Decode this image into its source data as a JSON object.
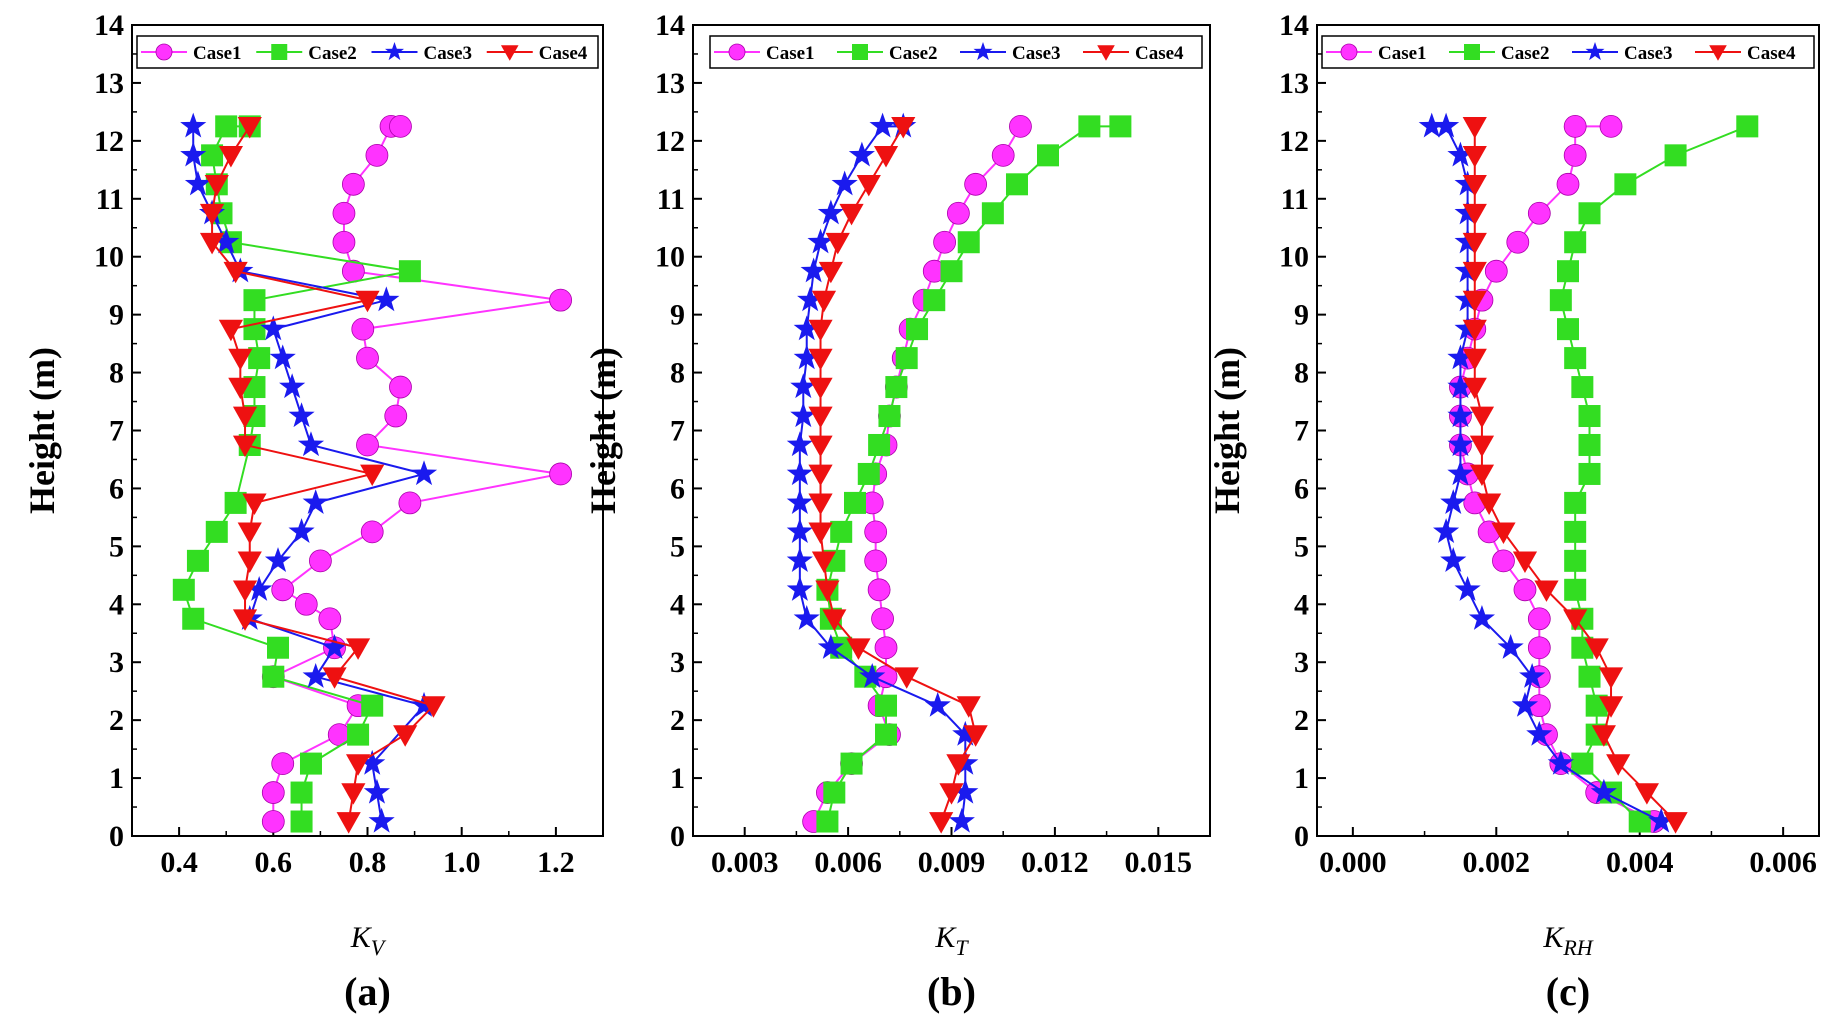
{
  "chart_data": [
    {
      "type": "line",
      "panel_label": "(a)",
      "xlabel_main": "K",
      "xlabel_sub": "V",
      "ylabel": "Height (m)",
      "xlim": [
        0.3,
        1.3
      ],
      "ylim": [
        0,
        14
      ],
      "xticks": [
        "0.4",
        "0.6",
        "0.8",
        "1.0",
        "1.2"
      ],
      "xtick_values": [
        0.4,
        0.6,
        0.8,
        1.0,
        1.2
      ],
      "yticks": [
        "0",
        "1",
        "2",
        "3",
        "4",
        "5",
        "6",
        "7",
        "8",
        "9",
        "10",
        "11",
        "12",
        "13",
        "14"
      ],
      "legend_position": "top",
      "series": [
        {
          "name": "Case1",
          "color": "#ff33ff",
          "marker": "circle",
          "x": [
            0.6,
            0.6,
            0.62,
            0.74,
            0.78,
            0.6,
            0.73,
            0.72,
            0.67,
            0.62,
            0.7,
            0.81,
            0.89,
            1.21,
            0.8,
            0.86,
            0.87,
            0.8,
            0.79,
            1.21,
            0.77,
            0.75,
            0.75,
            0.77,
            0.82,
            0.85,
            0.87
          ],
          "y": [
            0.25,
            0.75,
            1.25,
            1.75,
            2.25,
            2.75,
            3.25,
            3.75,
            4.0,
            4.25,
            4.75,
            5.25,
            5.75,
            6.25,
            6.75,
            7.25,
            7.75,
            8.25,
            8.75,
            9.25,
            9.75,
            10.25,
            10.75,
            11.25,
            11.75,
            12.25,
            12.25
          ]
        },
        {
          "name": "Case2",
          "color": "#33dd22",
          "marker": "square",
          "x": [
            0.66,
            0.66,
            0.68,
            0.78,
            0.81,
            0.6,
            0.61,
            0.43,
            0.41,
            0.44,
            0.48,
            0.52,
            0.55,
            0.56,
            0.56,
            0.57,
            0.56,
            0.56,
            0.89,
            0.51,
            0.49,
            0.48,
            0.47,
            0.5,
            0.55
          ],
          "y": [
            0.25,
            0.75,
            1.25,
            1.75,
            2.25,
            2.75,
            3.25,
            3.75,
            4.25,
            4.75,
            5.25,
            5.75,
            6.75,
            7.25,
            7.75,
            8.25,
            8.75,
            9.25,
            9.75,
            10.25,
            10.75,
            11.25,
            11.75,
            12.25,
            12.25
          ]
        },
        {
          "name": "Case3",
          "color": "#1a1aee",
          "marker": "star",
          "x": [
            0.83,
            0.82,
            0.81,
            0.92,
            0.69,
            0.73,
            0.55,
            0.57,
            0.61,
            0.66,
            0.69,
            0.92,
            0.68,
            0.66,
            0.64,
            0.62,
            0.6,
            0.84,
            0.53,
            0.5,
            0.47,
            0.44,
            0.43,
            0.43
          ],
          "y": [
            0.25,
            0.75,
            1.25,
            2.25,
            2.75,
            3.25,
            3.75,
            4.25,
            4.75,
            5.25,
            5.75,
            6.25,
            6.75,
            7.25,
            7.75,
            8.25,
            8.75,
            9.25,
            9.75,
            10.25,
            10.75,
            11.25,
            11.75,
            12.25
          ]
        },
        {
          "name": "Case4",
          "color": "#ee1111",
          "marker": "triangle-down",
          "x": [
            0.76,
            0.77,
            0.78,
            0.88,
            0.94,
            0.73,
            0.78,
            0.54,
            0.54,
            0.55,
            0.55,
            0.56,
            0.81,
            0.54,
            0.54,
            0.53,
            0.53,
            0.51,
            0.8,
            0.52,
            0.47,
            0.47,
            0.48,
            0.51,
            0.55
          ],
          "y": [
            0.25,
            0.75,
            1.25,
            1.75,
            2.25,
            2.75,
            3.25,
            3.75,
            4.25,
            4.75,
            5.25,
            5.75,
            6.25,
            6.75,
            7.25,
            7.75,
            8.25,
            8.75,
            9.25,
            9.75,
            10.25,
            10.75,
            11.25,
            11.75,
            12.25
          ]
        }
      ]
    },
    {
      "type": "line",
      "panel_label": "(b)",
      "xlabel_main": "K",
      "xlabel_sub": "T",
      "ylabel": "Height (m)",
      "xlim": [
        0.0015,
        0.0165
      ],
      "ylim": [
        0,
        14
      ],
      "xticks": [
        "0.003",
        "0.006",
        "0.009",
        "0.012",
        "0.015"
      ],
      "xtick_values": [
        0.003,
        0.006,
        0.009,
        0.012,
        0.015
      ],
      "yticks": [
        "0",
        "1",
        "2",
        "3",
        "4",
        "5",
        "6",
        "7",
        "8",
        "9",
        "10",
        "11",
        "12",
        "13",
        "14"
      ],
      "legend_position": "top",
      "series": [
        {
          "name": "Case1",
          "color": "#ff33ff",
          "marker": "circle",
          "x": [
            0.005,
            0.0054,
            0.0061,
            0.0072,
            0.0069,
            0.0071,
            0.0071,
            0.007,
            0.0069,
            0.0068,
            0.0068,
            0.0067,
            0.0068,
            0.0071,
            0.0072,
            0.0074,
            0.0076,
            0.0078,
            0.0082,
            0.0085,
            0.0088,
            0.0092,
            0.0097,
            0.0105,
            0.011
          ],
          "y": [
            0.25,
            0.75,
            1.25,
            1.75,
            2.25,
            2.75,
            3.25,
            3.75,
            4.25,
            4.75,
            5.25,
            5.75,
            6.25,
            6.75,
            7.25,
            7.75,
            8.25,
            8.75,
            9.25,
            9.75,
            10.25,
            10.75,
            11.25,
            11.75,
            12.25
          ]
        },
        {
          "name": "Case2",
          "color": "#33dd22",
          "marker": "square",
          "x": [
            0.0054,
            0.0056,
            0.0061,
            0.0071,
            0.0071,
            0.0065,
            0.0058,
            0.0055,
            0.0054,
            0.0056,
            0.0058,
            0.0062,
            0.0066,
            0.0069,
            0.0072,
            0.0074,
            0.0077,
            0.008,
            0.0085,
            0.009,
            0.0095,
            0.0102,
            0.0109,
            0.0118,
            0.013,
            0.0139
          ],
          "y": [
            0.25,
            0.75,
            1.25,
            1.75,
            2.25,
            2.75,
            3.25,
            3.75,
            4.25,
            4.75,
            5.25,
            5.75,
            6.25,
            6.75,
            7.25,
            7.75,
            8.25,
            8.75,
            9.25,
            9.75,
            10.25,
            10.75,
            11.25,
            11.75,
            12.25,
            12.25
          ]
        },
        {
          "name": "Case3",
          "color": "#1a1aee",
          "marker": "star",
          "x": [
            0.0093,
            0.0094,
            0.0094,
            0.0094,
            0.0086,
            0.0067,
            0.0055,
            0.0048,
            0.0046,
            0.0046,
            0.0046,
            0.0046,
            0.0046,
            0.0046,
            0.0047,
            0.0047,
            0.0048,
            0.0048,
            0.0049,
            0.005,
            0.0052,
            0.0055,
            0.0059,
            0.0064,
            0.007,
            0.0076
          ],
          "y": [
            0.25,
            0.75,
            1.25,
            1.75,
            2.25,
            2.75,
            3.25,
            3.75,
            4.25,
            4.75,
            5.25,
            5.75,
            6.25,
            6.75,
            7.25,
            7.75,
            8.25,
            8.75,
            9.25,
            9.75,
            10.25,
            10.75,
            11.25,
            11.75,
            12.25,
            12.25
          ]
        },
        {
          "name": "Case4",
          "color": "#ee1111",
          "marker": "triangle-down",
          "x": [
            0.0087,
            0.009,
            0.0092,
            0.0097,
            0.0095,
            0.0077,
            0.0063,
            0.0056,
            0.0054,
            0.0053,
            0.0052,
            0.0052,
            0.0052,
            0.0052,
            0.0052,
            0.0052,
            0.0052,
            0.0052,
            0.0053,
            0.0055,
            0.0057,
            0.0061,
            0.0066,
            0.0071,
            0.0076
          ],
          "y": [
            0.25,
            0.75,
            1.25,
            1.75,
            2.25,
            2.75,
            3.25,
            3.75,
            4.25,
            4.75,
            5.25,
            5.75,
            6.25,
            6.75,
            7.25,
            7.75,
            8.25,
            8.75,
            9.25,
            9.75,
            10.25,
            10.75,
            11.25,
            11.75,
            12.25
          ]
        }
      ]
    },
    {
      "type": "line",
      "panel_label": "(c)",
      "xlabel_main": "K",
      "xlabel_sub": "RH",
      "ylabel": "Height (m)",
      "xlim": [
        -0.0005,
        0.0065
      ],
      "ylim": [
        0,
        14
      ],
      "xticks": [
        "0.000",
        "0.002",
        "0.004",
        "0.006"
      ],
      "xtick_values": [
        0.0,
        0.002,
        0.004,
        0.006
      ],
      "yticks": [
        "0",
        "1",
        "2",
        "3",
        "4",
        "5",
        "6",
        "7",
        "8",
        "9",
        "10",
        "11",
        "12",
        "13",
        "14"
      ],
      "legend_position": "top",
      "series": [
        {
          "name": "Case1",
          "color": "#ff33ff",
          "marker": "circle",
          "x": [
            0.0042,
            0.0034,
            0.0029,
            0.0027,
            0.0026,
            0.0026,
            0.0026,
            0.0026,
            0.0024,
            0.0021,
            0.0019,
            0.0017,
            0.0016,
            0.0015,
            0.0015,
            0.0015,
            0.0016,
            0.0017,
            0.0018,
            0.002,
            0.0023,
            0.0026,
            0.003,
            0.0031,
            0.0031,
            0.0036
          ],
          "y": [
            0.25,
            0.75,
            1.25,
            1.75,
            2.25,
            2.75,
            3.25,
            3.75,
            4.25,
            4.75,
            5.25,
            5.75,
            6.25,
            6.75,
            7.25,
            7.75,
            8.25,
            8.75,
            9.25,
            9.75,
            10.25,
            10.75,
            11.25,
            11.75,
            12.25,
            12.25
          ]
        },
        {
          "name": "Case2",
          "color": "#33dd22",
          "marker": "square",
          "x": [
            0.004,
            0.0036,
            0.0032,
            0.0034,
            0.0034,
            0.0033,
            0.0032,
            0.0032,
            0.0031,
            0.0031,
            0.0031,
            0.0031,
            0.0033,
            0.0033,
            0.0033,
            0.0032,
            0.0031,
            0.003,
            0.0029,
            0.003,
            0.0031,
            0.0033,
            0.0038,
            0.0045,
            0.0055
          ],
          "y": [
            0.25,
            0.75,
            1.25,
            1.75,
            2.25,
            2.75,
            3.25,
            3.75,
            4.25,
            4.75,
            5.25,
            5.75,
            6.25,
            6.75,
            7.25,
            7.75,
            8.25,
            8.75,
            9.25,
            9.75,
            10.25,
            10.75,
            11.25,
            11.75,
            12.25
          ]
        },
        {
          "name": "Case3",
          "color": "#1a1aee",
          "marker": "star",
          "x": [
            0.0043,
            0.0035,
            0.0029,
            0.0026,
            0.0024,
            0.0025,
            0.0022,
            0.0018,
            0.0016,
            0.0014,
            0.0013,
            0.0014,
            0.0015,
            0.0015,
            0.0015,
            0.0015,
            0.0015,
            0.0016,
            0.0016,
            0.0016,
            0.0016,
            0.0016,
            0.0016,
            0.0015,
            0.0013,
            0.0011
          ],
          "y": [
            0.25,
            0.75,
            1.25,
            1.75,
            2.25,
            2.75,
            3.25,
            3.75,
            4.25,
            4.75,
            5.25,
            5.75,
            6.25,
            6.75,
            7.25,
            7.75,
            8.25,
            8.75,
            9.25,
            9.75,
            10.25,
            10.75,
            11.25,
            11.75,
            12.25,
            12.25
          ]
        },
        {
          "name": "Case4",
          "color": "#ee1111",
          "marker": "triangle-down",
          "x": [
            0.0045,
            0.0041,
            0.0037,
            0.0035,
            0.0036,
            0.0036,
            0.0034,
            0.0031,
            0.0027,
            0.0024,
            0.0021,
            0.0019,
            0.0018,
            0.0018,
            0.0018,
            0.0017,
            0.0017,
            0.0017,
            0.0017,
            0.0017,
            0.0017,
            0.0017,
            0.0017,
            0.0017,
            0.0017
          ],
          "y": [
            0.25,
            0.75,
            1.25,
            1.75,
            2.25,
            2.75,
            3.25,
            3.75,
            4.25,
            4.75,
            5.25,
            5.75,
            6.25,
            6.75,
            7.25,
            7.75,
            8.25,
            8.75,
            9.25,
            9.75,
            10.25,
            10.75,
            11.25,
            11.75,
            12.25
          ]
        }
      ]
    }
  ]
}
